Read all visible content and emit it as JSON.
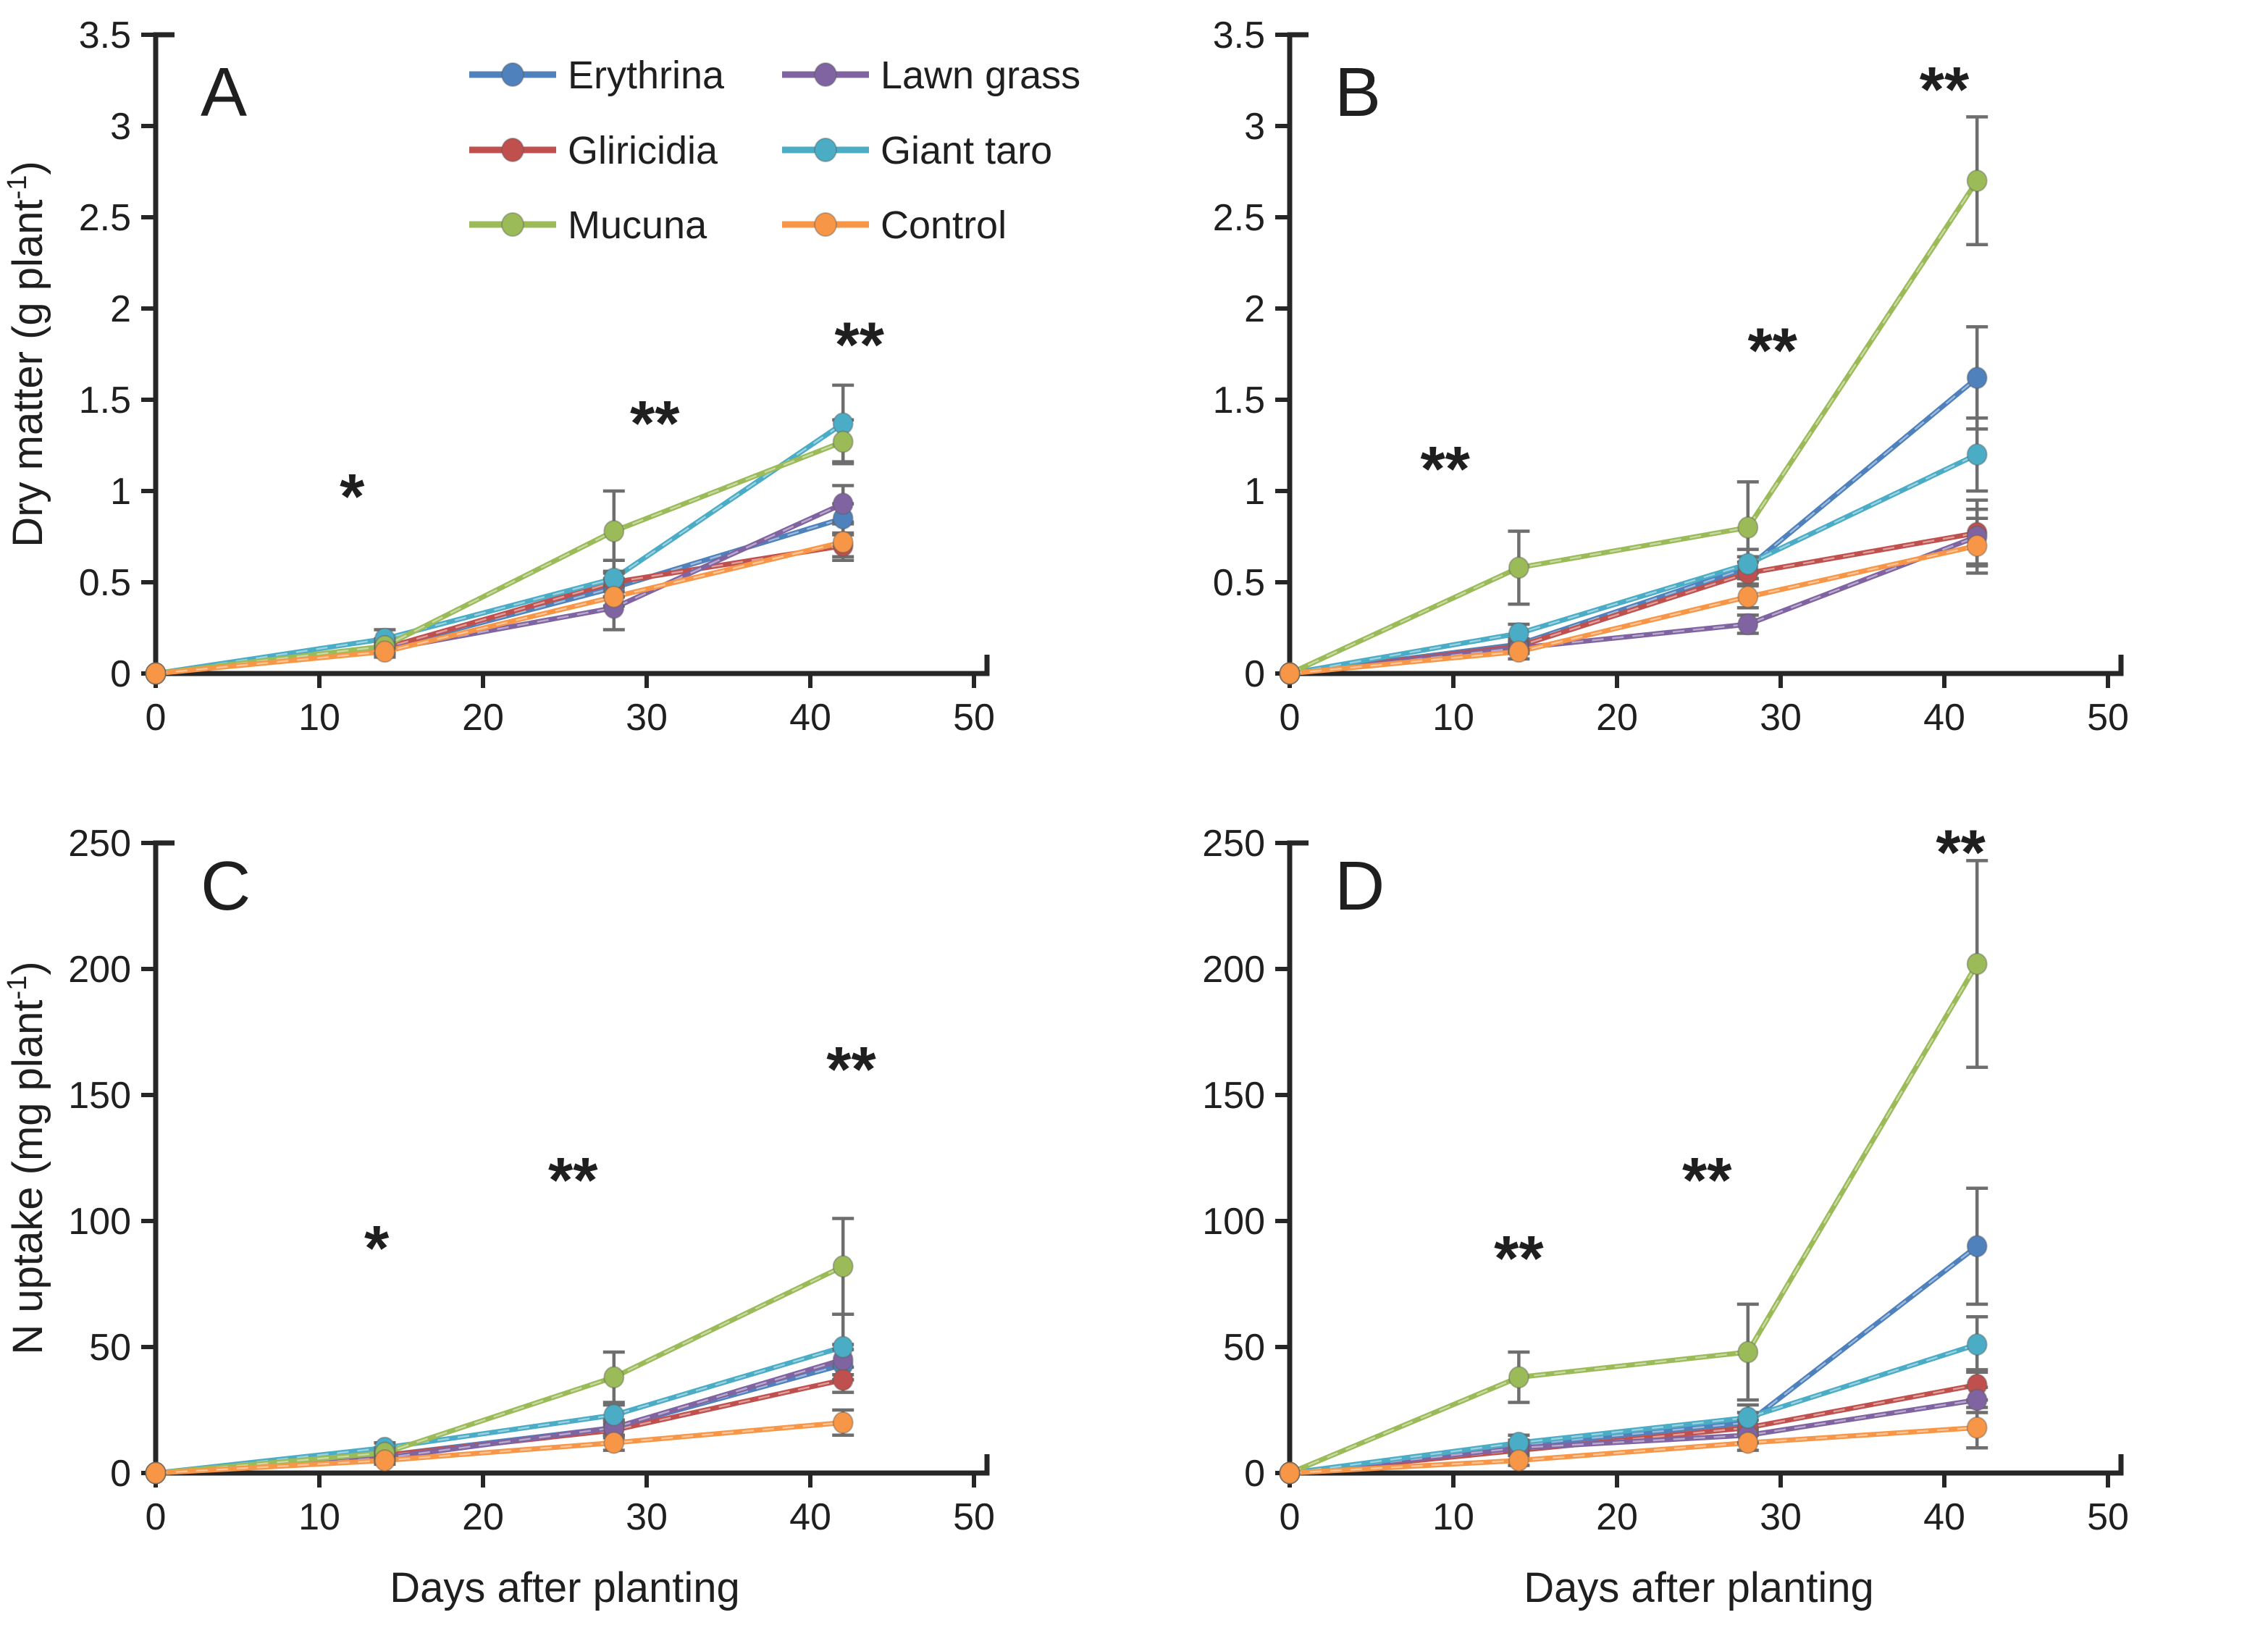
{
  "figure": {
    "background": "#ffffff",
    "axis_color": "#262626",
    "error_bar_color": "#6e6e6e",
    "significance_color": "#1a1a1a",
    "x_label": "Days after planting",
    "x_tick_labels": [
      "0",
      "10",
      "20",
      "30",
      "40",
      "50"
    ],
    "x_tick_values": [
      0,
      10,
      20,
      30,
      40,
      50
    ],
    "xlim": [
      0,
      50
    ],
    "sampling_days": [
      0,
      14,
      28,
      42
    ]
  },
  "legend": {
    "position": "top-left-panel",
    "columns": [
      [
        "Erythrina",
        "Gliricidia",
        "Mucuna"
      ],
      [
        "Lawn grass",
        "Giant taro",
        "Control"
      ]
    ],
    "entries": [
      {
        "name": "Erythrina",
        "color": "#4F81BD"
      },
      {
        "name": "Gliricidia",
        "color": "#C0504D"
      },
      {
        "name": "Mucuna",
        "color": "#9BBB59"
      },
      {
        "name": "Lawn grass",
        "color": "#8064A2"
      },
      {
        "name": "Giant taro",
        "color": "#4BACC6"
      },
      {
        "name": "Control",
        "color": "#F79646"
      }
    ]
  },
  "chart_data": [
    {
      "id": "A",
      "type": "line",
      "panel_label": "A",
      "ylabel": {
        "main": "Dry matter (g plant",
        "sup": "-1",
        "end": ")"
      },
      "xlabel": null,
      "ylim": [
        0,
        3.5
      ],
      "ytick_values": [
        0,
        0.5,
        1,
        1.5,
        2,
        2.5,
        3,
        3.5
      ],
      "ytick_labels": [
        "0",
        "0.5",
        "1",
        "1.5",
        "2",
        "2.5",
        "3",
        "3.5"
      ],
      "x": [
        0,
        14,
        28,
        42
      ],
      "show_legend": true,
      "series": [
        {
          "name": "Erythrina",
          "values": [
            0,
            0.14,
            0.47,
            0.85
          ],
          "errors": [
            0,
            0.03,
            0.05,
            0.08
          ]
        },
        {
          "name": "Gliricidia",
          "values": [
            0,
            0.14,
            0.5,
            0.7
          ],
          "errors": [
            0,
            0.03,
            0.05,
            0.06
          ]
        },
        {
          "name": "Lawn grass",
          "values": [
            0,
            0.13,
            0.36,
            0.93
          ],
          "errors": [
            0,
            0.03,
            0.12,
            0.1
          ]
        },
        {
          "name": "Giant taro",
          "values": [
            0,
            0.19,
            0.52,
            1.37
          ],
          "errors": [
            0,
            0.05,
            0.1,
            0.21
          ]
        },
        {
          "name": "Mucuna",
          "values": [
            0,
            0.15,
            0.78,
            1.27
          ],
          "errors": [
            0,
            0.04,
            0.22,
            0.12
          ]
        },
        {
          "name": "Control",
          "values": [
            0,
            0.12,
            0.42,
            0.72
          ],
          "errors": [
            0,
            0.03,
            0.05,
            0.1
          ]
        }
      ],
      "significance": [
        {
          "x": 12,
          "y": 1.05,
          "text": "*"
        },
        {
          "x": 30.5,
          "y": 1.45,
          "text": "**"
        },
        {
          "x": 43,
          "y": 1.88,
          "text": "**"
        }
      ]
    },
    {
      "id": "B",
      "type": "line",
      "panel_label": "B",
      "ylabel": null,
      "xlabel": null,
      "ylim": [
        0,
        3.5
      ],
      "ytick_values": [
        0,
        0.5,
        1,
        1.5,
        2,
        2.5,
        3,
        3.5
      ],
      "ytick_labels": [
        "0",
        "0.5",
        "1",
        "1.5",
        "2",
        "2.5",
        "3",
        "3.5"
      ],
      "x": [
        0,
        14,
        28,
        42
      ],
      "show_legend": false,
      "series": [
        {
          "name": "Erythrina",
          "values": [
            0,
            0.16,
            0.58,
            1.62
          ],
          "errors": [
            0,
            0.03,
            0.06,
            0.28
          ]
        },
        {
          "name": "Gliricidia",
          "values": [
            0,
            0.15,
            0.55,
            0.77
          ],
          "errors": [
            0,
            0.03,
            0.06,
            0.18
          ]
        },
        {
          "name": "Lawn grass",
          "values": [
            0,
            0.14,
            0.27,
            0.75
          ],
          "errors": [
            0,
            0.03,
            0.05,
            0.15
          ]
        },
        {
          "name": "Giant taro",
          "values": [
            0,
            0.22,
            0.6,
            1.2
          ],
          "errors": [
            0,
            0.05,
            0.08,
            0.2
          ]
        },
        {
          "name": "Mucuna",
          "values": [
            0,
            0.58,
            0.8,
            2.7
          ],
          "errors": [
            0,
            0.2,
            0.25,
            0.35
          ]
        },
        {
          "name": "Control",
          "values": [
            0,
            0.12,
            0.42,
            0.7
          ],
          "errors": [
            0,
            0.04,
            0.06,
            0.15
          ]
        }
      ],
      "significance": [
        {
          "x": 9.5,
          "y": 1.2,
          "text": "**"
        },
        {
          "x": 29.5,
          "y": 1.85,
          "text": "**"
        },
        {
          "x": 40,
          "y": 3.28,
          "text": "**"
        }
      ]
    },
    {
      "id": "C",
      "type": "line",
      "panel_label": "C",
      "ylabel": {
        "main": "N uptake (mg plant",
        "sup": "-1",
        "end": ")"
      },
      "xlabel": "Days after planting",
      "ylim": [
        0,
        250
      ],
      "ytick_values": [
        0,
        50,
        100,
        150,
        200,
        250
      ],
      "ytick_labels": [
        "0",
        "50",
        "100",
        "150",
        "200",
        "250"
      ],
      "x": [
        0,
        14,
        28,
        42
      ],
      "show_legend": false,
      "series": [
        {
          "name": "Erythrina",
          "values": [
            0,
            7,
            18,
            43
          ],
          "errors": [
            0,
            1.5,
            3,
            6
          ]
        },
        {
          "name": "Gliricidia",
          "values": [
            0,
            7,
            17,
            37
          ],
          "errors": [
            0,
            1.5,
            3,
            5
          ]
        },
        {
          "name": "Lawn grass",
          "values": [
            0,
            6,
            18,
            45
          ],
          "errors": [
            0,
            1.5,
            3,
            6
          ]
        },
        {
          "name": "Giant taro",
          "values": [
            0,
            10,
            23,
            50
          ],
          "errors": [
            0,
            2,
            4,
            13
          ]
        },
        {
          "name": "Mucuna",
          "values": [
            0,
            8,
            38,
            82
          ],
          "errors": [
            0,
            2,
            10,
            19
          ]
        },
        {
          "name": "Control",
          "values": [
            0,
            5,
            12,
            20
          ],
          "errors": [
            0,
            1.5,
            3,
            5
          ]
        }
      ],
      "significance": [
        {
          "x": 13.5,
          "y": 95,
          "text": "*"
        },
        {
          "x": 25.5,
          "y": 122,
          "text": "**"
        },
        {
          "x": 42.5,
          "y": 166,
          "text": "**"
        }
      ]
    },
    {
      "id": "D",
      "type": "line",
      "panel_label": "D",
      "ylabel": null,
      "xlabel": "Days after planting",
      "ylim": [
        0,
        250
      ],
      "ytick_values": [
        0,
        50,
        100,
        150,
        200,
        250
      ],
      "ytick_labels": [
        "0",
        "50",
        "100",
        "150",
        "200",
        "250"
      ],
      "x": [
        0,
        14,
        28,
        42
      ],
      "show_legend": false,
      "series": [
        {
          "name": "Erythrina",
          "values": [
            0,
            11,
            20,
            90
          ],
          "errors": [
            0,
            2,
            4,
            23
          ]
        },
        {
          "name": "Gliricidia",
          "values": [
            0,
            9,
            18,
            35
          ],
          "errors": [
            0,
            2,
            3,
            6
          ]
        },
        {
          "name": "Lawn grass",
          "values": [
            0,
            10,
            15,
            29
          ],
          "errors": [
            0,
            2,
            3,
            5
          ]
        },
        {
          "name": "Giant taro",
          "values": [
            0,
            12,
            22,
            51
          ],
          "errors": [
            0,
            3,
            5,
            11
          ]
        },
        {
          "name": "Mucuna",
          "values": [
            0,
            38,
            48,
            202
          ],
          "errors": [
            0,
            10,
            19,
            41
          ]
        },
        {
          "name": "Control",
          "values": [
            0,
            5,
            12,
            18
          ],
          "errors": [
            0,
            2,
            3,
            8
          ]
        }
      ],
      "significance": [
        {
          "x": 14,
          "y": 91,
          "text": "**"
        },
        {
          "x": 25.5,
          "y": 122,
          "text": "**"
        },
        {
          "x": 41,
          "y": 252,
          "text": "**"
        }
      ]
    }
  ]
}
